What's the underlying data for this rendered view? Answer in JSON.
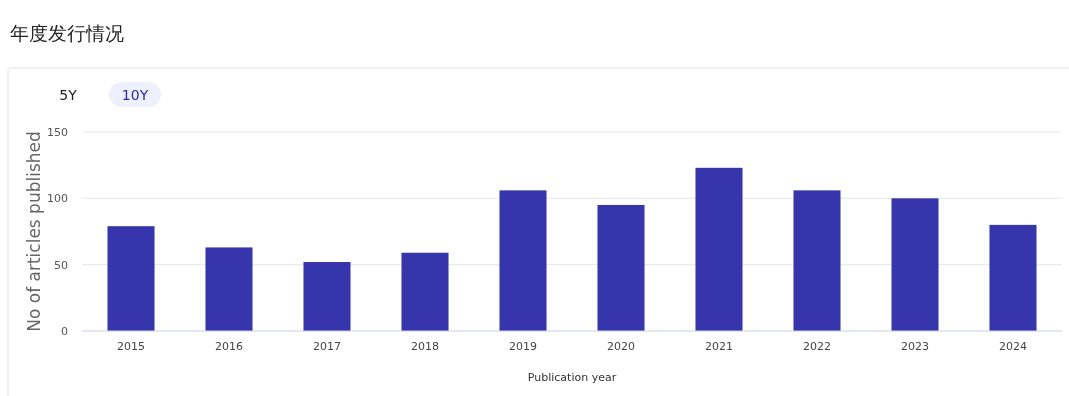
{
  "chart_data": {
    "type": "bar",
    "title": "年度发行情况",
    "xlabel": "Publication year",
    "ylabel": "No of articles published",
    "annotations": [
      "5Y",
      "10Y"
    ],
    "categories": [
      "2015",
      "2016",
      "2017",
      "2018",
      "2019",
      "2020",
      "2021",
      "2022",
      "2023",
      "2024"
    ],
    "values": [
      79,
      63,
      52,
      59,
      106,
      95,
      123,
      106,
      100,
      80
    ],
    "color": "#3635ab",
    "ylim": [
      0,
      150
    ],
    "yticks": [
      0,
      50,
      100,
      150
    ],
    "grid": "y"
  }
}
